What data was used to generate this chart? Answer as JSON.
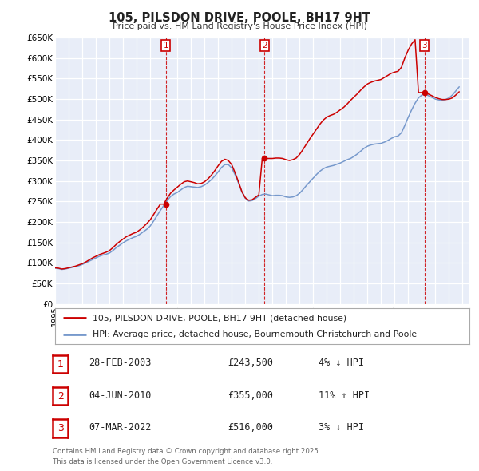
{
  "title": "105, PILSDON DRIVE, POOLE, BH17 9HT",
  "subtitle": "Price paid vs. HM Land Registry's House Price Index (HPI)",
  "xlim": [
    1995,
    2025.5
  ],
  "ylim": [
    0,
    650000
  ],
  "yticks": [
    0,
    50000,
    100000,
    150000,
    200000,
    250000,
    300000,
    350000,
    400000,
    450000,
    500000,
    550000,
    600000,
    650000
  ],
  "ytick_labels": [
    "£0",
    "£50K",
    "£100K",
    "£150K",
    "£200K",
    "£250K",
    "£300K",
    "£350K",
    "£400K",
    "£450K",
    "£500K",
    "£550K",
    "£600K",
    "£650K"
  ],
  "xticks": [
    1995,
    1996,
    1997,
    1998,
    1999,
    2000,
    2001,
    2002,
    2003,
    2004,
    2005,
    2006,
    2007,
    2008,
    2009,
    2010,
    2011,
    2012,
    2013,
    2014,
    2015,
    2016,
    2017,
    2018,
    2019,
    2020,
    2021,
    2022,
    2023,
    2024,
    2025
  ],
  "background_color": "#ffffff",
  "plot_bg_color": "#e8edf8",
  "grid_color": "#ffffff",
  "sale_color": "#cc0000",
  "hpi_color": "#7799cc",
  "sale_marker_color": "#cc0000",
  "vline_color": "#cc0000",
  "legend_label_sale": "105, PILSDON DRIVE, POOLE, BH17 9HT (detached house)",
  "legend_label_hpi": "HPI: Average price, detached house, Bournemouth Christchurch and Poole",
  "transactions": [
    {
      "num": 1,
      "date": "28-FEB-2003",
      "price": 243500,
      "price_str": "£243,500",
      "pct": "4%",
      "dir": "↓",
      "x": 2003.15
    },
    {
      "num": 2,
      "date": "04-JUN-2010",
      "price": 355000,
      "price_str": "£355,000",
      "pct": "11%",
      "dir": "↑",
      "x": 2010.42
    },
    {
      "num": 3,
      "date": "07-MAR-2022",
      "price": 516000,
      "price_str": "£516,000",
      "pct": "3%",
      "dir": "↓",
      "x": 2022.18
    }
  ],
  "footnote1": "Contains HM Land Registry data © Crown copyright and database right 2025.",
  "footnote2": "This data is licensed under the Open Government Licence v3.0.",
  "hpi_data_x": [
    1995.0,
    1995.25,
    1995.5,
    1995.75,
    1996.0,
    1996.25,
    1996.5,
    1996.75,
    1997.0,
    1997.25,
    1997.5,
    1997.75,
    1998.0,
    1998.25,
    1998.5,
    1998.75,
    1999.0,
    1999.25,
    1999.5,
    1999.75,
    2000.0,
    2000.25,
    2000.5,
    2000.75,
    2001.0,
    2001.25,
    2001.5,
    2001.75,
    2002.0,
    2002.25,
    2002.5,
    2002.75,
    2003.0,
    2003.25,
    2003.5,
    2003.75,
    2004.0,
    2004.25,
    2004.5,
    2004.75,
    2005.0,
    2005.25,
    2005.5,
    2005.75,
    2006.0,
    2006.25,
    2006.5,
    2006.75,
    2007.0,
    2007.25,
    2007.5,
    2007.75,
    2008.0,
    2008.25,
    2008.5,
    2008.75,
    2009.0,
    2009.25,
    2009.5,
    2009.75,
    2010.0,
    2010.25,
    2010.5,
    2010.75,
    2011.0,
    2011.25,
    2011.5,
    2011.75,
    2012.0,
    2012.25,
    2012.5,
    2012.75,
    2013.0,
    2013.25,
    2013.5,
    2013.75,
    2014.0,
    2014.25,
    2014.5,
    2014.75,
    2015.0,
    2015.25,
    2015.5,
    2015.75,
    2016.0,
    2016.25,
    2016.5,
    2016.75,
    2017.0,
    2017.25,
    2017.5,
    2017.75,
    2018.0,
    2018.25,
    2018.5,
    2018.75,
    2019.0,
    2019.25,
    2019.5,
    2019.75,
    2020.0,
    2020.25,
    2020.5,
    2020.75,
    2021.0,
    2021.25,
    2021.5,
    2021.75,
    2022.0,
    2022.25,
    2022.5,
    2022.75,
    2023.0,
    2023.25,
    2023.5,
    2023.75,
    2024.0,
    2024.25,
    2024.5,
    2024.75
  ],
  "hpi_data_y": [
    87000,
    86000,
    84000,
    85000,
    87000,
    89000,
    91000,
    93000,
    96000,
    100000,
    104000,
    108000,
    112000,
    116000,
    119000,
    121000,
    124000,
    130000,
    137000,
    143000,
    149000,
    154000,
    158000,
    162000,
    165000,
    170000,
    176000,
    182000,
    190000,
    202000,
    215000,
    228000,
    240000,
    252000,
    262000,
    268000,
    272000,
    278000,
    284000,
    287000,
    286000,
    285000,
    284000,
    286000,
    290000,
    296000,
    303000,
    312000,
    322000,
    333000,
    340000,
    340000,
    332000,
    315000,
    295000,
    273000,
    258000,
    251000,
    252000,
    257000,
    263000,
    267000,
    268000,
    266000,
    264000,
    265000,
    265000,
    264000,
    261000,
    260000,
    261000,
    264000,
    270000,
    279000,
    289000,
    298000,
    307000,
    316000,
    324000,
    330000,
    334000,
    336000,
    338000,
    341000,
    344000,
    348000,
    352000,
    355000,
    360000,
    366000,
    373000,
    380000,
    385000,
    388000,
    390000,
    391000,
    392000,
    395000,
    399000,
    404000,
    408000,
    410000,
    418000,
    436000,
    456000,
    474000,
    490000,
    503000,
    510000,
    512000,
    508000,
    504000,
    500000,
    498000,
    497000,
    499000,
    503000,
    510000,
    520000,
    530000
  ],
  "sale_data_x": [
    1995.0,
    1995.25,
    1995.5,
    1995.75,
    1996.0,
    1996.25,
    1996.5,
    1996.75,
    1997.0,
    1997.25,
    1997.5,
    1997.75,
    1998.0,
    1998.25,
    1998.5,
    1998.75,
    1999.0,
    1999.25,
    1999.5,
    1999.75,
    2000.0,
    2000.25,
    2000.5,
    2000.75,
    2001.0,
    2001.25,
    2001.5,
    2001.75,
    2002.0,
    2002.25,
    2002.5,
    2002.75,
    2003.0,
    2003.25,
    2003.5,
    2003.75,
    2004.0,
    2004.25,
    2004.5,
    2004.75,
    2005.0,
    2005.25,
    2005.5,
    2005.75,
    2006.0,
    2006.25,
    2006.5,
    2006.75,
    2007.0,
    2007.25,
    2007.5,
    2007.75,
    2008.0,
    2008.25,
    2008.5,
    2008.75,
    2009.0,
    2009.25,
    2009.5,
    2009.75,
    2010.0,
    2010.25,
    2010.5,
    2010.75,
    2011.0,
    2011.25,
    2011.5,
    2011.75,
    2012.0,
    2012.25,
    2012.5,
    2012.75,
    2013.0,
    2013.25,
    2013.5,
    2013.75,
    2014.0,
    2014.25,
    2014.5,
    2014.75,
    2015.0,
    2015.25,
    2015.5,
    2015.75,
    2016.0,
    2016.25,
    2016.5,
    2016.75,
    2017.0,
    2017.25,
    2017.5,
    2017.75,
    2018.0,
    2018.25,
    2018.5,
    2018.75,
    2019.0,
    2019.25,
    2019.5,
    2019.75,
    2020.0,
    2020.25,
    2020.5,
    2020.75,
    2021.0,
    2021.25,
    2021.5,
    2021.75,
    2022.0,
    2022.25,
    2022.5,
    2022.75,
    2023.0,
    2023.25,
    2023.5,
    2023.75,
    2024.0,
    2024.25,
    2024.5,
    2024.75
  ],
  "sale_data_y": [
    88000,
    87000,
    85000,
    86000,
    88000,
    90000,
    92000,
    95000,
    98000,
    102000,
    107000,
    112000,
    116000,
    120000,
    123000,
    126000,
    130000,
    137000,
    145000,
    152000,
    158000,
    164000,
    168000,
    172000,
    175000,
    181000,
    188000,
    196000,
    205000,
    218000,
    231000,
    243500,
    243500,
    258000,
    270000,
    278000,
    285000,
    292000,
    298000,
    300000,
    298000,
    296000,
    293000,
    294000,
    298000,
    305000,
    314000,
    325000,
    337000,
    348000,
    353000,
    350000,
    340000,
    320000,
    298000,
    274000,
    259000,
    253000,
    254000,
    260000,
    266000,
    355000,
    355000,
    355000,
    355000,
    356000,
    356000,
    355000,
    352000,
    350000,
    352000,
    356000,
    365000,
    377000,
    390000,
    403000,
    415000,
    427000,
    439000,
    449000,
    456000,
    460000,
    463000,
    468000,
    474000,
    480000,
    488000,
    497000,
    505000,
    513000,
    522000,
    530000,
    537000,
    541000,
    544000,
    546000,
    548000,
    553000,
    558000,
    563000,
    566000,
    568000,
    578000,
    601000,
    620000,
    635000,
    645000,
    516000,
    516000,
    516000,
    512000,
    508000,
    504000,
    501000,
    499000,
    499000,
    500000,
    503000,
    510000,
    518000
  ]
}
